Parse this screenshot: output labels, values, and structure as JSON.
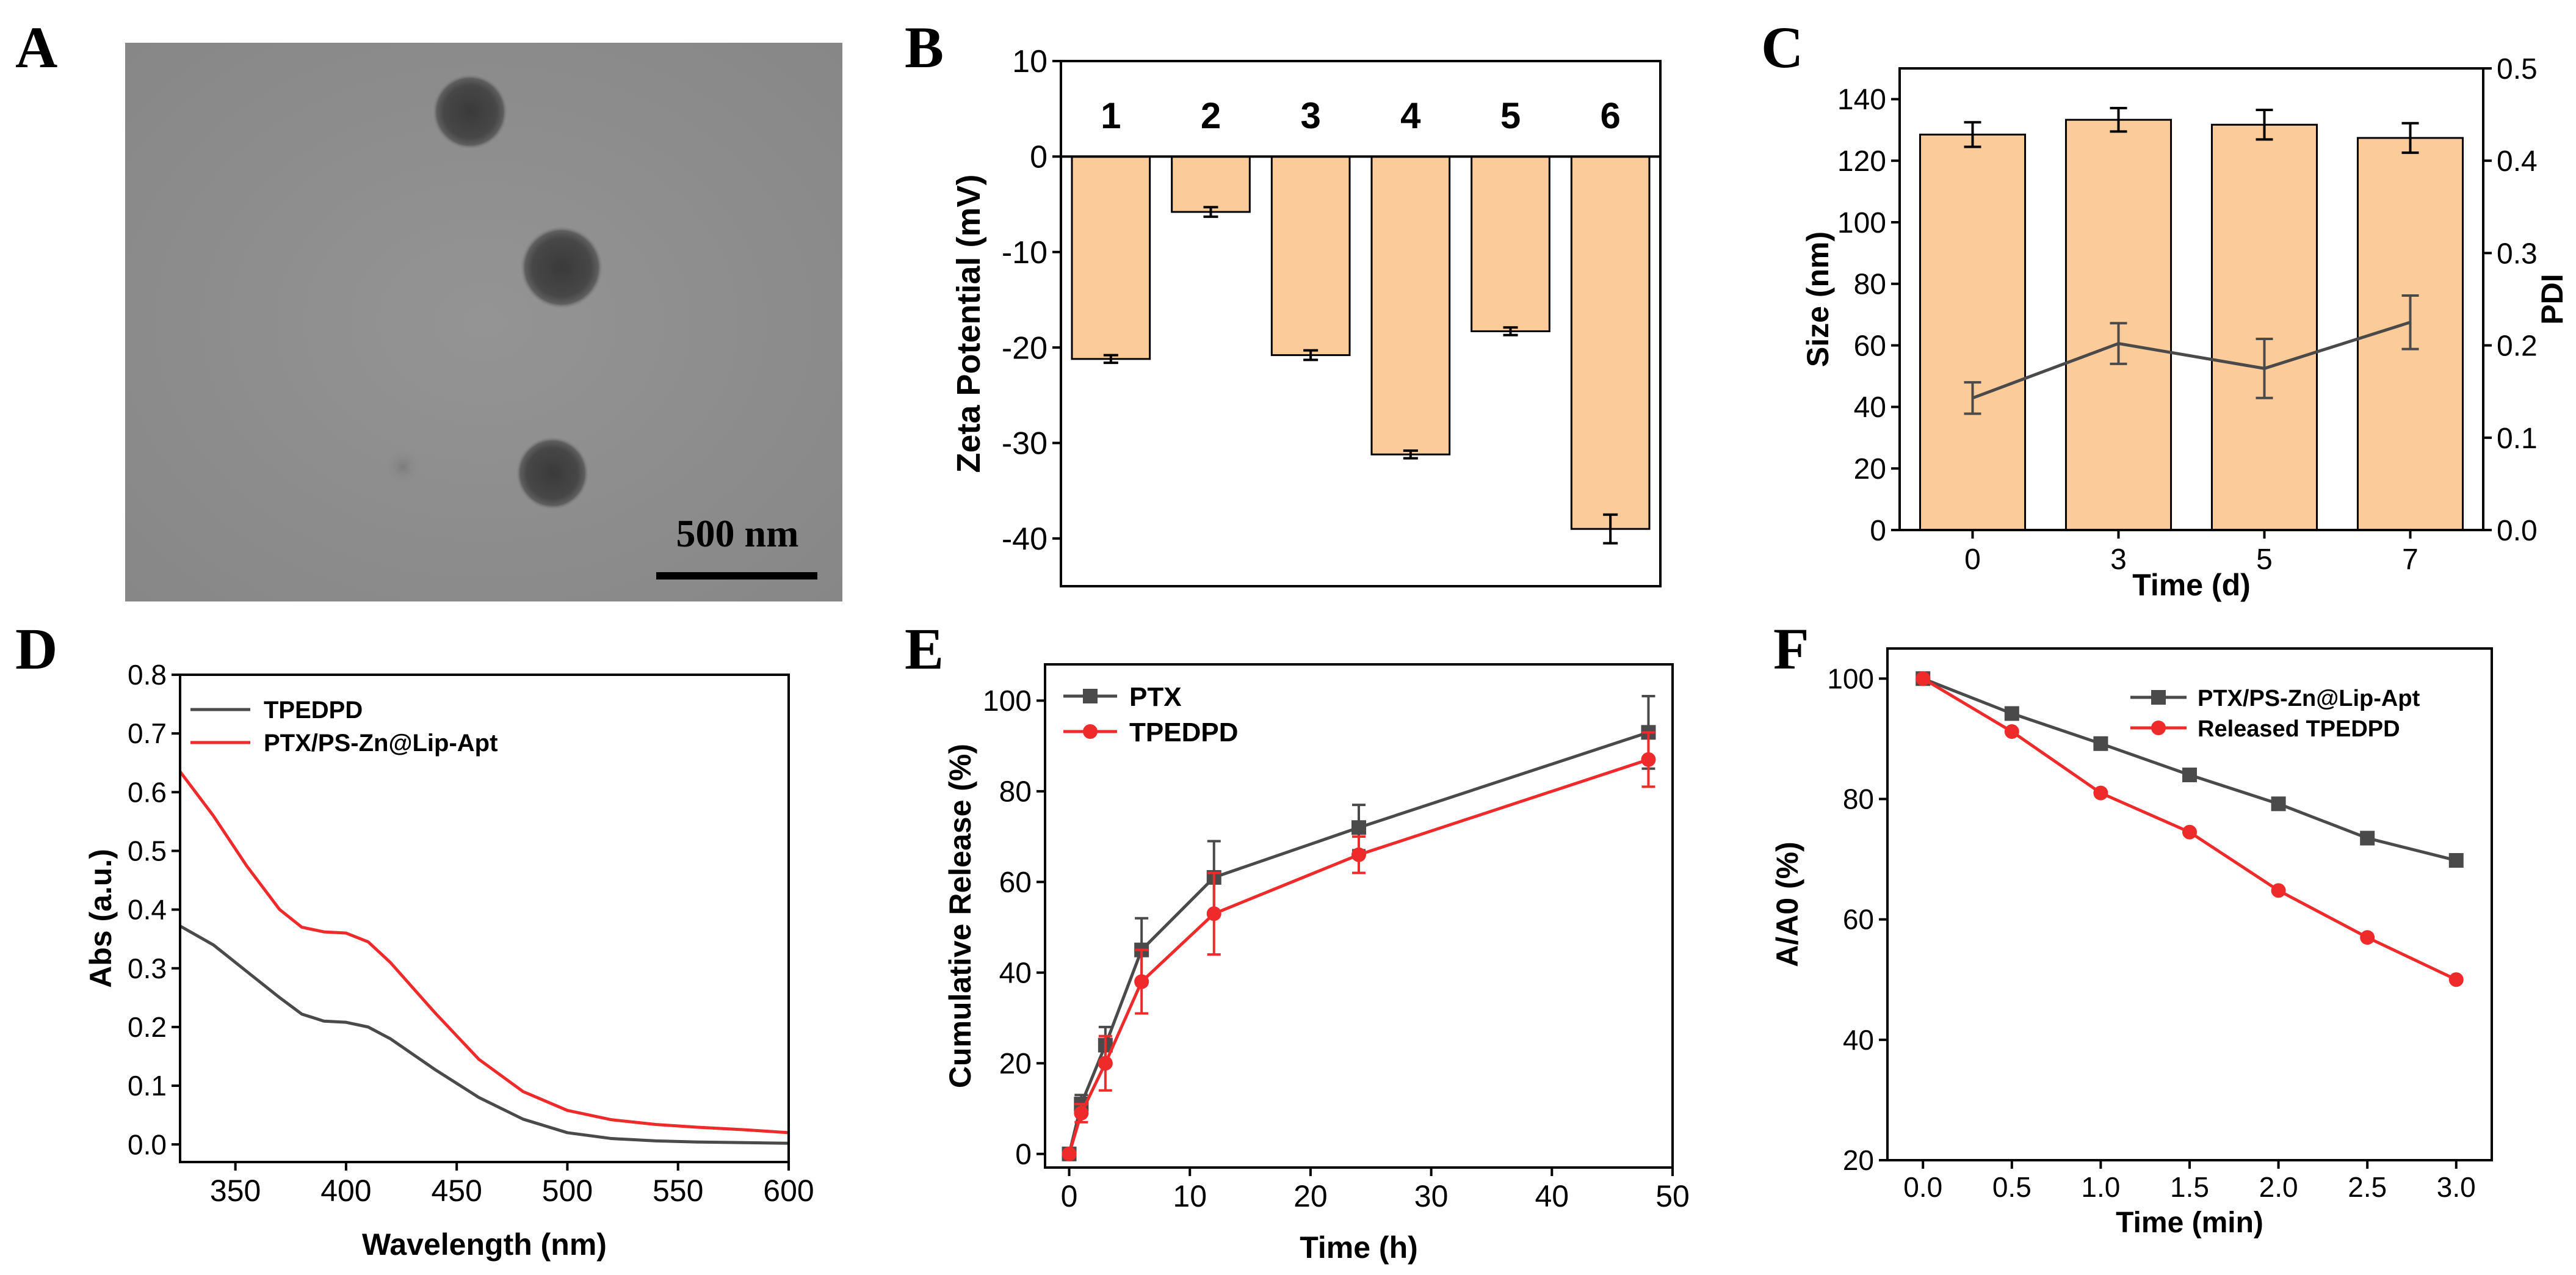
{
  "figure": {
    "panels": {
      "A": {
        "letter": "A",
        "scale_bar_label": "500 nm"
      },
      "B": {
        "letter": "B"
      },
      "C": {
        "letter": "C"
      },
      "D": {
        "letter": "D"
      },
      "E": {
        "letter": "E"
      },
      "F": {
        "letter": "F"
      }
    }
  },
  "colors": {
    "bar_fill": "#fccb9a",
    "black": "#000000",
    "gray_series": "#4a4a4a",
    "red_series": "#ee2a2a",
    "tem_background": "#8c8c8c"
  },
  "chart_data": [
    {
      "id": "B",
      "type": "bar",
      "title": "",
      "xlabel": "",
      "ylabel": "Zeta Potential (mV)",
      "ylim": [
        -45,
        10
      ],
      "yticks": [
        10,
        0,
        -10,
        -20,
        -30,
        -40
      ],
      "ytick_labels": [
        "10",
        "0",
        "-10",
        "-20",
        "-30",
        "-40"
      ],
      "categories": [
        "1",
        "2",
        "3",
        "4",
        "5",
        "6"
      ],
      "values": [
        -21.2,
        -5.8,
        -20.8,
        -31.2,
        -18.3,
        -39.0
      ],
      "errors": [
        0.4,
        0.5,
        0.5,
        0.4,
        0.4,
        1.5
      ],
      "grid": false
    },
    {
      "id": "C",
      "type": "bar",
      "title": "",
      "xlabel": "Time (d)",
      "ylabel": "Size (nm)",
      "ylabel_right": "PDI",
      "ylim": [
        0,
        150
      ],
      "ylim_right": [
        0,
        0.5
      ],
      "yticks": [
        0,
        20,
        40,
        60,
        80,
        100,
        120,
        140
      ],
      "ytick_labels": [
        "0",
        "20",
        "40",
        "60",
        "80",
        "100",
        "120",
        "140"
      ],
      "yticks_right": [
        0.0,
        0.1,
        0.2,
        0.3,
        0.4,
        0.5
      ],
      "ytick_labels_right": [
        "0.0",
        "0.1",
        "0.2",
        "0.3",
        "0.4",
        "0.5"
      ],
      "categories": [
        "0",
        "3",
        "5",
        "7"
      ],
      "series": [
        {
          "name": "Size",
          "axis": "left",
          "kind": "bar",
          "values": [
            128.5,
            133.3,
            131.7,
            127.4
          ],
          "errors": [
            4.0,
            3.8,
            4.8,
            4.8
          ]
        },
        {
          "name": "PDI",
          "axis": "right",
          "kind": "line",
          "values": [
            0.143,
            0.202,
            0.175,
            0.225
          ],
          "errors": [
            0.017,
            0.022,
            0.032,
            0.029
          ]
        }
      ],
      "grid": false
    },
    {
      "id": "D",
      "type": "line",
      "title": "",
      "xlabel": "Wavelength (nm)",
      "ylabel": "Abs (a.u.)",
      "xlim": [
        325,
        600
      ],
      "ylim": [
        -0.03,
        0.8
      ],
      "xticks": [
        350,
        400,
        450,
        500,
        550,
        600
      ],
      "xtick_labels": [
        "350",
        "400",
        "450",
        "500",
        "550",
        "600"
      ],
      "yticks": [
        0.0,
        0.1,
        0.2,
        0.3,
        0.4,
        0.5,
        0.6,
        0.7,
        0.8
      ],
      "ytick_labels": [
        "0.0",
        "0.1",
        "0.2",
        "0.3",
        "0.4",
        "0.5",
        "0.6",
        "0.7",
        "0.8"
      ],
      "legend_position": "top-left",
      "series": [
        {
          "name": "TPEDPD",
          "color": "#4a4a4a",
          "x": [
            325,
            340,
            355,
            370,
            380,
            390,
            400,
            410,
            420,
            440,
            460,
            480,
            500,
            520,
            540,
            560,
            580,
            600
          ],
          "y": [
            0.372,
            0.34,
            0.295,
            0.25,
            0.222,
            0.21,
            0.208,
            0.2,
            0.18,
            0.128,
            0.08,
            0.043,
            0.02,
            0.01,
            0.006,
            0.004,
            0.003,
            0.002
          ]
        },
        {
          "name": "PTX/PS-Zn@Lip-Apt",
          "color": "#ee2a2a",
          "x": [
            325,
            340,
            355,
            370,
            380,
            390,
            400,
            410,
            420,
            440,
            460,
            480,
            500,
            520,
            540,
            560,
            580,
            600
          ],
          "y": [
            0.635,
            0.56,
            0.475,
            0.4,
            0.37,
            0.362,
            0.36,
            0.345,
            0.31,
            0.225,
            0.145,
            0.09,
            0.058,
            0.042,
            0.034,
            0.029,
            0.025,
            0.02
          ]
        }
      ],
      "grid": false
    },
    {
      "id": "E",
      "type": "line",
      "title": "",
      "xlabel": "Time (h)",
      "ylabel": "Cumulative Release (%)",
      "xlim": [
        -2,
        50
      ],
      "ylim": [
        -3,
        108
      ],
      "xticks": [
        0,
        10,
        20,
        30,
        40,
        50
      ],
      "xtick_labels": [
        "0",
        "10",
        "20",
        "30",
        "40",
        "50"
      ],
      "yticks": [
        0,
        20,
        40,
        60,
        80,
        100
      ],
      "ytick_labels": [
        "0",
        "20",
        "40",
        "60",
        "80",
        "100"
      ],
      "legend_position": "top-left",
      "series": [
        {
          "name": "PTX",
          "color": "#4a4a4a",
          "marker": "square",
          "x": [
            0,
            1,
            3,
            6,
            12,
            24,
            48
          ],
          "y": [
            0,
            11,
            24,
            45,
            61,
            72,
            93
          ],
          "errors": [
            0,
            2,
            4,
            7,
            8,
            5,
            8
          ]
        },
        {
          "name": "TPEDPD",
          "color": "#ee2a2a",
          "marker": "circle",
          "x": [
            0,
            1,
            3,
            6,
            12,
            24,
            48
          ],
          "y": [
            0,
            9,
            20,
            38,
            53,
            66,
            87
          ],
          "errors": [
            0,
            2,
            6,
            7,
            9,
            4,
            6
          ]
        }
      ],
      "grid": false
    },
    {
      "id": "F",
      "type": "line",
      "title": "",
      "xlabel": "Time (min)",
      "ylabel": "A/A0 (%)",
      "xlim": [
        -0.2,
        3.2
      ],
      "ylim": [
        20,
        105
      ],
      "xticks": [
        0.0,
        0.5,
        1.0,
        1.5,
        2.0,
        2.5,
        3.0
      ],
      "xtick_labels": [
        "0.0",
        "0.5",
        "1.0",
        "1.5",
        "2.0",
        "2.5",
        "3.0"
      ],
      "yticks": [
        20,
        40,
        60,
        80,
        100
      ],
      "ytick_labels": [
        "20",
        "40",
        "60",
        "80",
        "100"
      ],
      "legend_position": "top-right",
      "series": [
        {
          "name": "PTX/PS-Zn@Lip-Apt",
          "color": "#4a4a4a",
          "marker": "square",
          "x": [
            0.0,
            0.5,
            1.0,
            1.5,
            2.0,
            2.5,
            3.0
          ],
          "y": [
            100,
            94.2,
            89.2,
            84.0,
            79.2,
            73.5,
            69.8
          ]
        },
        {
          "name": "Released TPEDPD",
          "color": "#ee2a2a",
          "marker": "circle",
          "x": [
            0.0,
            0.5,
            1.0,
            1.5,
            2.0,
            2.5,
            3.0
          ],
          "y": [
            100,
            91.2,
            81.0,
            74.5,
            64.8,
            57.0,
            50.0
          ]
        }
      ],
      "grid": false
    }
  ]
}
